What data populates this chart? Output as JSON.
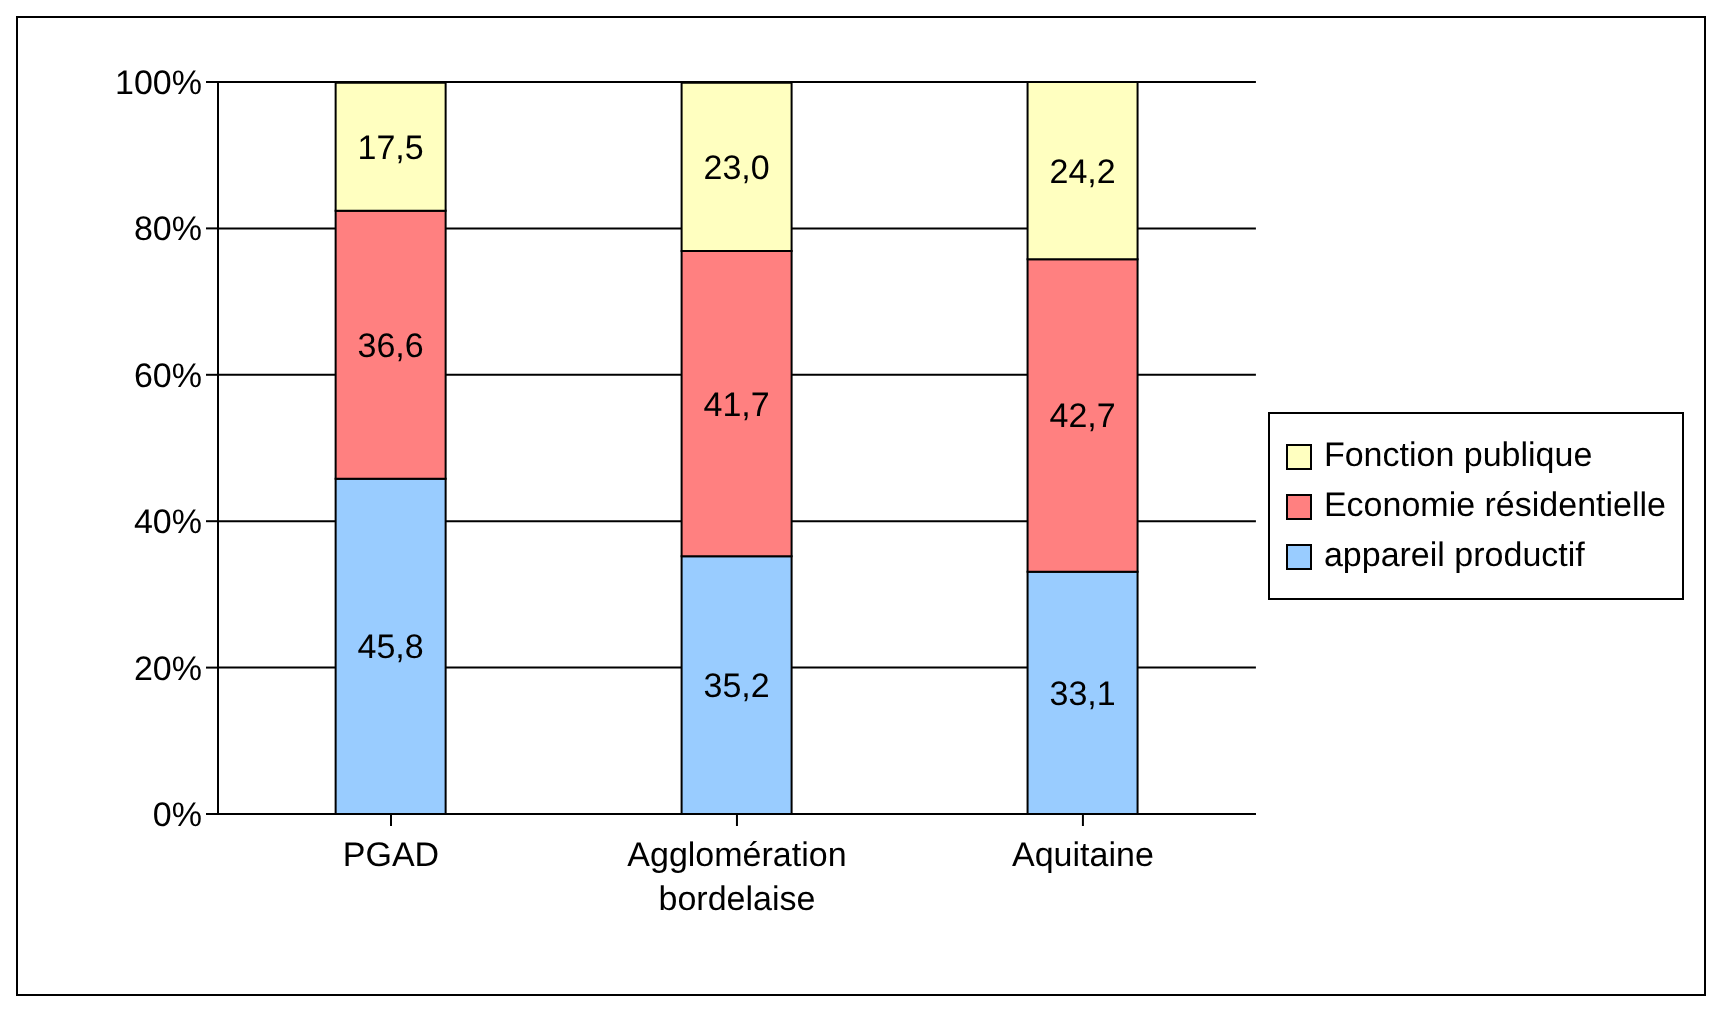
{
  "chart_data": {
    "type": "bar",
    "stacked": true,
    "categories": [
      "PGAD",
      "Agglomération bordelaise",
      "Aquitaine"
    ],
    "series": [
      {
        "name": "appareil productif",
        "color": "#99ccff",
        "values": [
          45.8,
          35.2,
          33.1
        ],
        "value_labels": [
          "45,8",
          "35,2",
          "33,1"
        ]
      },
      {
        "name": "Economie résidentielle",
        "color": "#ff8080",
        "values": [
          36.6,
          41.7,
          42.7
        ],
        "value_labels": [
          "36,6",
          "41,7",
          "42,7"
        ]
      },
      {
        "name": "Fonction publique",
        "color": "#ffffc0",
        "values": [
          17.5,
          23.0,
          24.2
        ],
        "value_labels": [
          "17,5",
          "23,0",
          "24,2"
        ]
      }
    ],
    "ylim": [
      0,
      100
    ],
    "yticks": [
      {
        "value": 0,
        "label": "0%"
      },
      {
        "value": 20,
        "label": "20%"
      },
      {
        "value": 40,
        "label": "40%"
      },
      {
        "value": 60,
        "label": "60%"
      },
      {
        "value": 80,
        "label": "80%"
      },
      {
        "value": 100,
        "label": "100%"
      }
    ],
    "grid": "y",
    "legend": "right"
  }
}
